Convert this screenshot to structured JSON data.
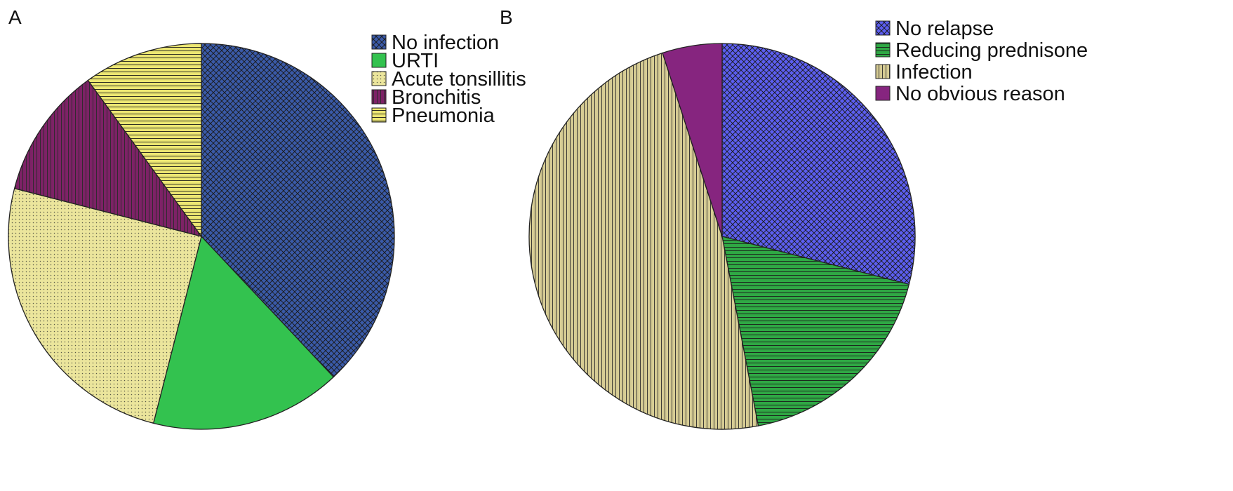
{
  "chart_data": [
    {
      "type": "pie",
      "panel_label": "A",
      "title": "",
      "legend_position": "top-right",
      "categories": [
        "No infection",
        "URTI",
        "Acute tonsillitis",
        "Bronchitis",
        "Pneumonia"
      ],
      "values": [
        38,
        16,
        25,
        11,
        10
      ],
      "colors": [
        "#3a5aa8",
        "#33c24f",
        "#ebe59c",
        "#7d2266",
        "#ece672"
      ],
      "patterns": [
        "diamond",
        "none",
        "dots",
        "vertical",
        "horizontal"
      ],
      "start_angle_deg": 0,
      "direction": "clockwise"
    },
    {
      "type": "pie",
      "panel_label": "B",
      "title": "",
      "legend_position": "top-right",
      "categories": [
        "No relapse",
        "Reducing prednisone",
        "Infection",
        "No obvious reason"
      ],
      "values": [
        29,
        18,
        48,
        5
      ],
      "colors": [
        "#5c5ef0",
        "#2fa844",
        "#d6cc94",
        "#86257f"
      ],
      "patterns": [
        "diamond",
        "horizontal",
        "vertical",
        "none"
      ],
      "start_angle_deg": 0,
      "direction": "clockwise"
    }
  ]
}
